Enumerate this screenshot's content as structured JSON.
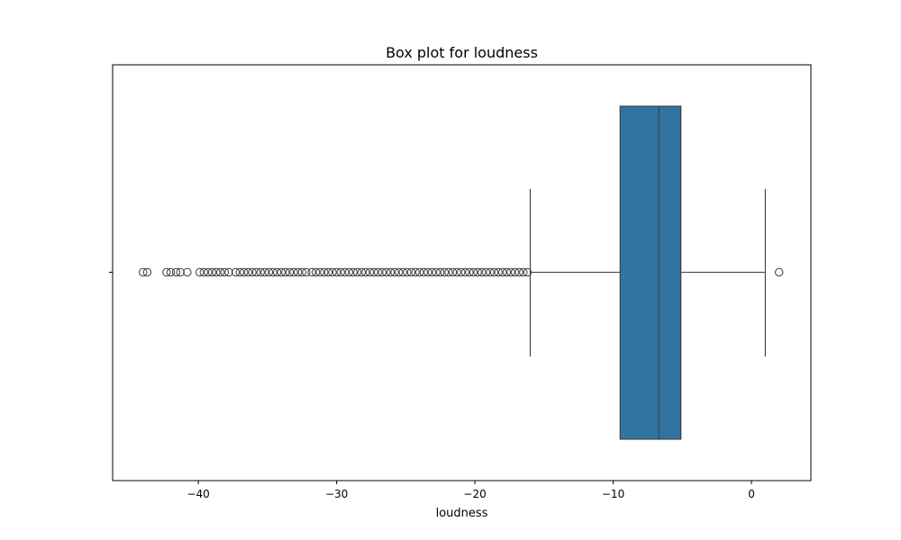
{
  "chart_data": {
    "type": "box",
    "title": "Box plot for loudness",
    "xlabel": "loudness",
    "ylabel": "",
    "xlim": [
      -46.2,
      4.3
    ],
    "xticks": [
      -40,
      -30,
      -20,
      -10,
      0
    ],
    "xtick_labels": [
      "−40",
      "−30",
      "−20",
      "−10",
      "0"
    ],
    "orientation": "horizontal",
    "box": {
      "whisker_low": -16.0,
      "q1": -9.5,
      "median": -6.7,
      "q3": -5.1,
      "whisker_high": 1.0
    },
    "outliers": [
      -44.0,
      -43.7,
      -42.3,
      -42.0,
      -41.6,
      -41.3,
      -40.8,
      -39.9,
      -39.6,
      -39.3,
      -39.0,
      -38.7,
      -38.4,
      -38.1,
      -37.8,
      -37.3,
      -37.0,
      -36.7,
      -36.4,
      -36.1,
      -35.8,
      -35.5,
      -35.2,
      -34.9,
      -34.6,
      -34.3,
      -34.0,
      -33.7,
      -33.4,
      -33.1,
      -32.8,
      -32.5,
      -32.2,
      -31.8,
      -31.5,
      -31.2,
      -30.9,
      -30.6,
      -30.3,
      -30.0,
      -29.7,
      -29.4,
      -29.1,
      -28.8,
      -28.5,
      -28.2,
      -27.9,
      -27.6,
      -27.3,
      -27.0,
      -26.7,
      -26.4,
      -26.1,
      -25.8,
      -25.5,
      -25.2,
      -24.9,
      -24.6,
      -24.3,
      -24.0,
      -23.7,
      -23.4,
      -23.1,
      -22.8,
      -22.5,
      -22.2,
      -21.9,
      -21.6,
      -21.3,
      -21.0,
      -20.7,
      -20.4,
      -20.1,
      -19.8,
      -19.5,
      -19.2,
      -18.9,
      -18.6,
      -18.3,
      -18.0,
      -17.7,
      -17.4,
      -17.1,
      -16.8,
      -16.5,
      -16.2,
      2.0
    ],
    "grid": false,
    "colors": {
      "box_fill": "#3274a1",
      "line": "#3d3d3d",
      "outlier_edge": "#3d3d3d"
    }
  }
}
